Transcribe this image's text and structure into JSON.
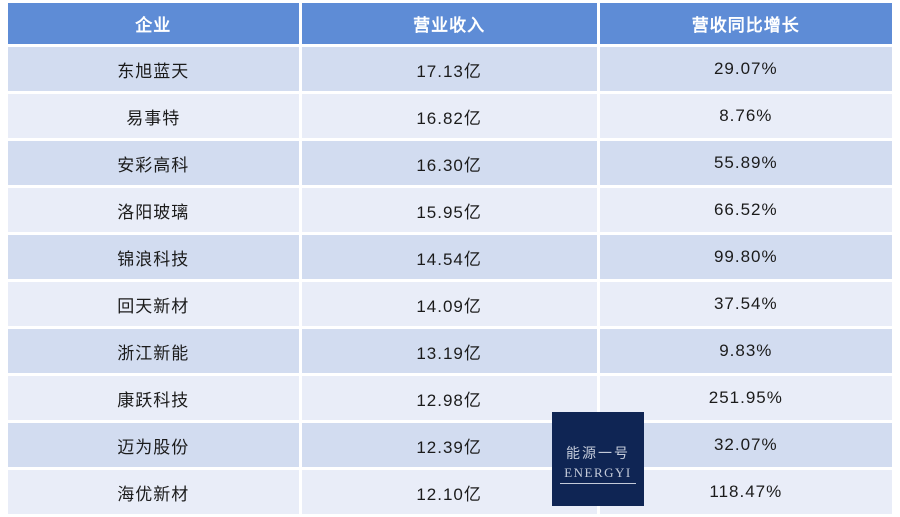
{
  "chart_data": {
    "type": "table",
    "headers": [
      "企业",
      "营业收入",
      "营收同比增长"
    ],
    "rows": [
      [
        "东旭蓝天",
        "17.13亿",
        "29.07%"
      ],
      [
        "易事特",
        "16.82亿",
        "8.76%"
      ],
      [
        "安彩高科",
        "16.30亿",
        "55.89%"
      ],
      [
        "洛阳玻璃",
        "15.95亿",
        "66.52%"
      ],
      [
        "锦浪科技",
        "14.54亿",
        "99.80%"
      ],
      [
        "回天新材",
        "14.09亿",
        "37.54%"
      ],
      [
        "浙江新能",
        "13.19亿",
        "9.83%"
      ],
      [
        "康跃科技",
        "12.98亿",
        "251.95%"
      ],
      [
        "迈为股份",
        "12.39亿",
        "32.07%"
      ],
      [
        "海优新材",
        "12.10亿",
        "118.47%"
      ]
    ],
    "layout_hints": {
      "columns": 3,
      "striped": true,
      "header_position": "top"
    }
  },
  "watermark": {
    "line1": "能源一号",
    "line2": "ENERGYI"
  },
  "colors": {
    "header_bg": "#5e8cd6",
    "header_text": "#ffffff",
    "row_odd_bg": "#d2dcf0",
    "row_even_bg": "#e9edf8",
    "cell_text": "#1b1b1b",
    "watermark_bg": "#0f2554",
    "watermark_text": "#c3cad9"
  }
}
